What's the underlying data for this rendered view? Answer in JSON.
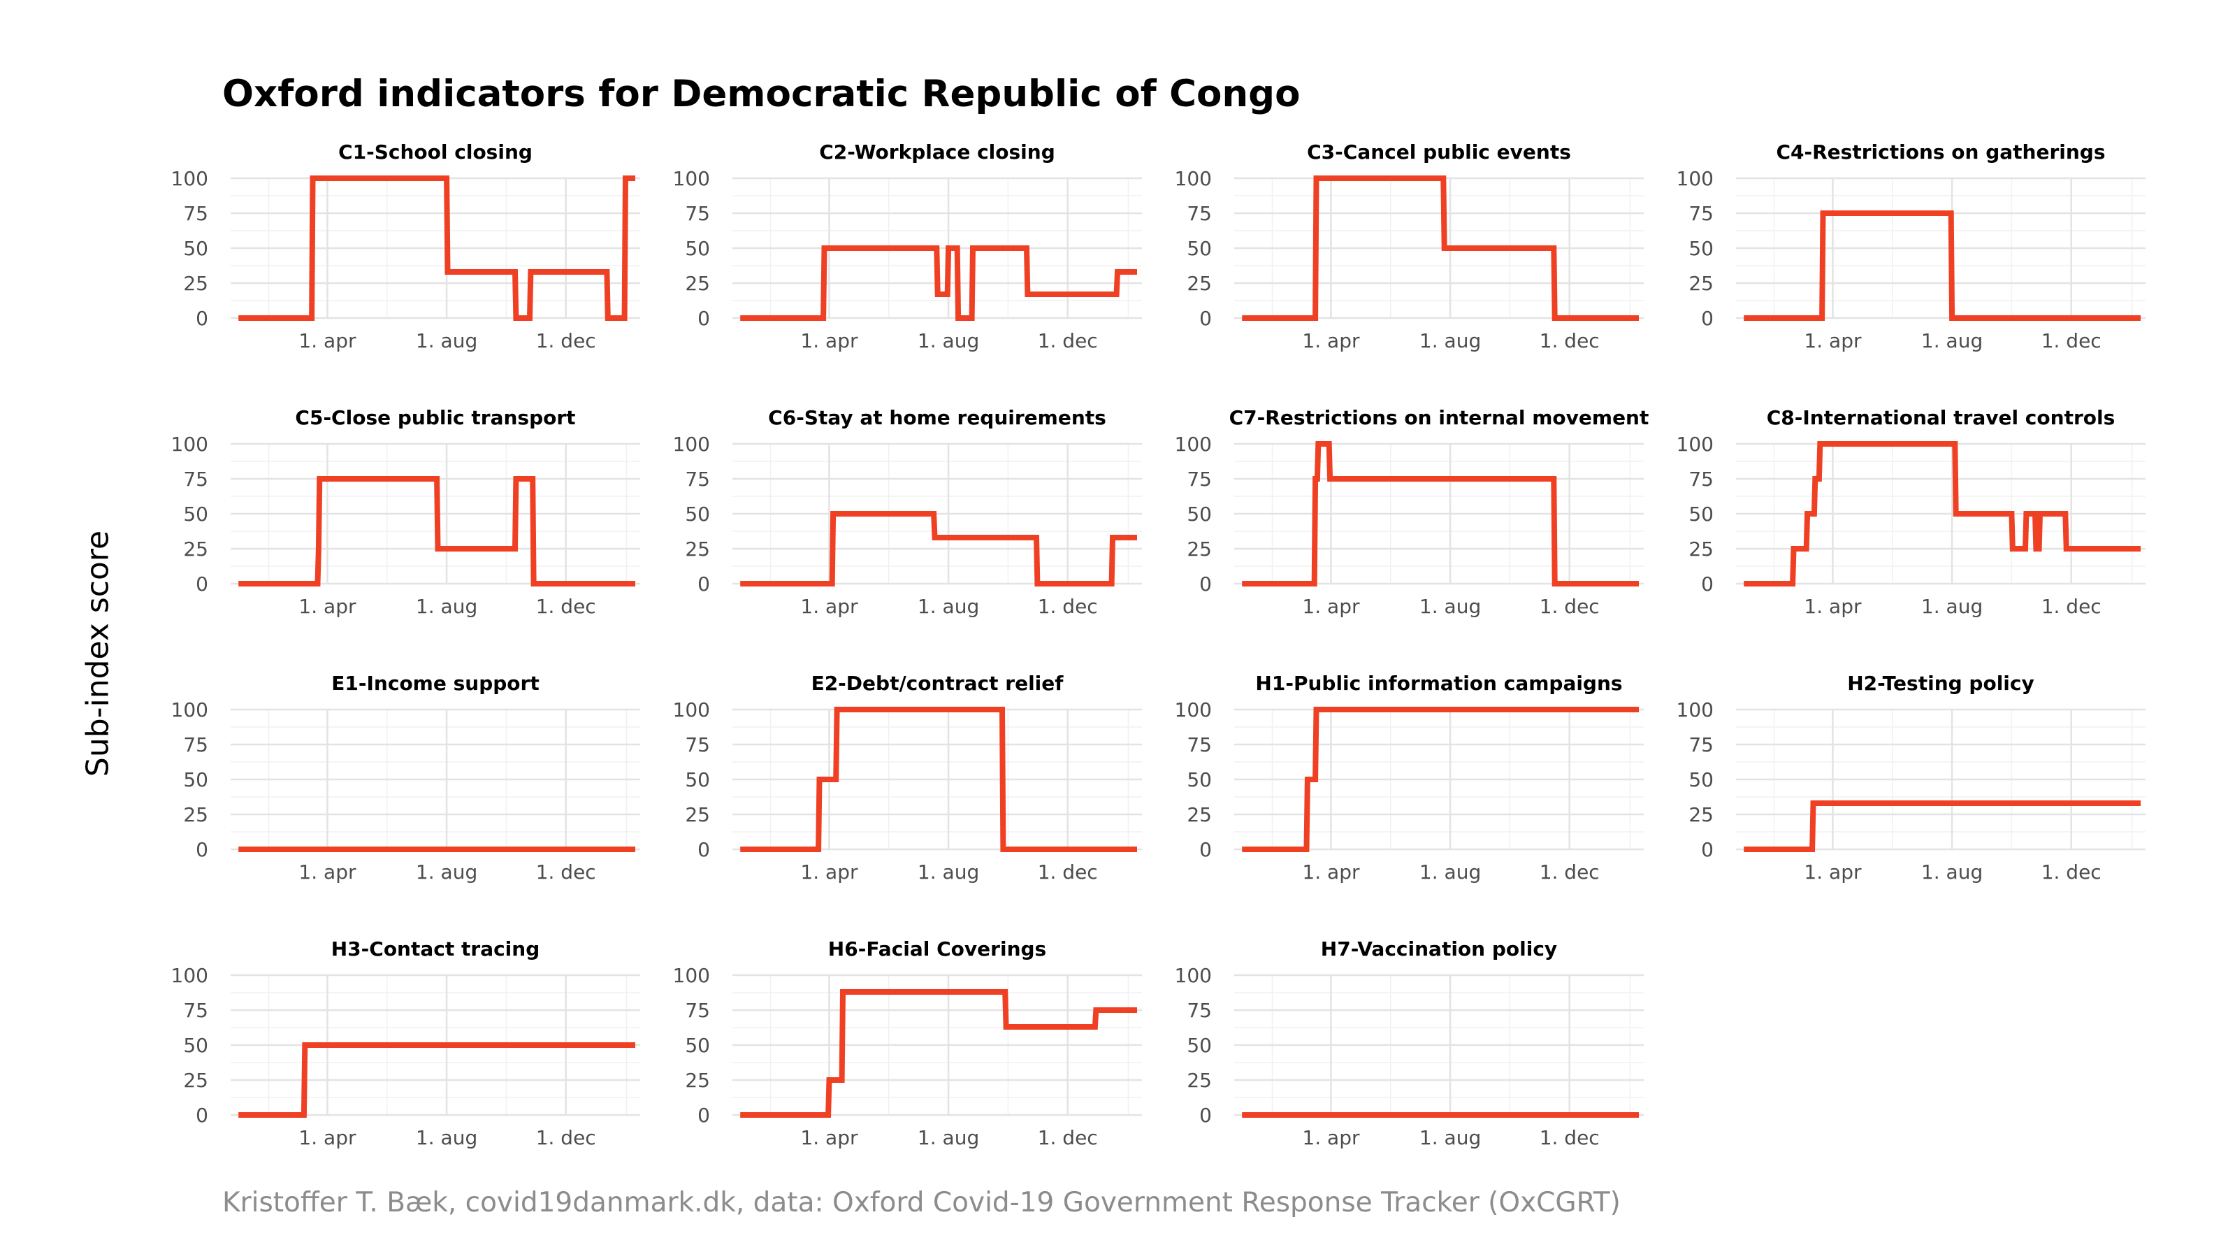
{
  "title": "Oxford indicators for Democratic Republic of Congo",
  "ylabel": "Sub-index score",
  "caption": "Kristoffer T. Bæk, covid19danmark.dk, data: Oxford Covid-19 Government Response Tracker (OxCGRT)",
  "colors": {
    "line": "#f04023",
    "grid": "#e3e3e3",
    "caption": "#8c8c8c"
  },
  "chart_data": [
    {
      "type": "line",
      "title": "C1-School closing",
      "y_ticks": [
        0,
        25,
        50,
        75,
        100
      ],
      "x_ticks": [
        "1. apr",
        "1. aug",
        "1. dec"
      ],
      "ylim": [
        0,
        100
      ],
      "x_range": [
        "2020-01-01",
        "2021-02-10"
      ],
      "grid": true,
      "series": [
        {
          "x": [
            "2020-01-01",
            "2020-03-16",
            "2020-03-17",
            "2020-08-01",
            "2020-08-02",
            "2020-10-10",
            "2020-10-11",
            "2020-10-25",
            "2020-10-26",
            "2021-01-12",
            "2021-01-13",
            "2021-01-30",
            "2021-01-31",
            "2021-02-10"
          ],
          "y": [
            0,
            0,
            100,
            100,
            33,
            33,
            0,
            0,
            33,
            33,
            0,
            0,
            100,
            100
          ]
        }
      ]
    },
    {
      "type": "line",
      "title": "C2-Workplace closing",
      "y_ticks": [
        0,
        25,
        50,
        75,
        100
      ],
      "x_ticks": [
        "1. apr",
        "1. aug",
        "1. dec"
      ],
      "ylim": [
        0,
        100
      ],
      "x_range": [
        "2020-01-01",
        "2021-02-10"
      ],
      "grid": true,
      "series": [
        {
          "x": [
            "2020-01-01",
            "2020-03-26",
            "2020-03-27",
            "2020-07-20",
            "2020-07-21",
            "2020-07-31",
            "2020-08-01",
            "2020-08-10",
            "2020-08-11",
            "2020-08-25",
            "2020-08-26",
            "2020-10-20",
            "2020-10-21",
            "2021-01-20",
            "2021-01-21",
            "2021-02-10"
          ],
          "y": [
            0,
            0,
            50,
            50,
            17,
            17,
            50,
            50,
            0,
            0,
            50,
            50,
            17,
            17,
            33,
            33
          ]
        }
      ]
    },
    {
      "type": "line",
      "title": "C3-Cancel public events",
      "y_ticks": [
        0,
        25,
        50,
        75,
        100
      ],
      "x_ticks": [
        "1. apr",
        "1. aug",
        "1. dec"
      ],
      "ylim": [
        0,
        100
      ],
      "x_range": [
        "2020-01-01",
        "2021-02-10"
      ],
      "grid": true,
      "series": [
        {
          "x": [
            "2020-01-01",
            "2020-03-16",
            "2020-03-17",
            "2020-07-25",
            "2020-07-26",
            "2020-11-15",
            "2020-11-16",
            "2021-02-10"
          ],
          "y": [
            0,
            0,
            100,
            100,
            50,
            50,
            0,
            0
          ]
        }
      ]
    },
    {
      "type": "line",
      "title": "C4-Restrictions on gatherings",
      "y_ticks": [
        0,
        25,
        50,
        75,
        100
      ],
      "x_ticks": [
        "1. apr",
        "1. aug",
        "1. dec"
      ],
      "ylim": [
        0,
        100
      ],
      "x_range": [
        "2020-01-01",
        "2021-02-10"
      ],
      "grid": true,
      "series": [
        {
          "x": [
            "2020-01-01",
            "2020-03-21",
            "2020-03-22",
            "2020-07-31",
            "2020-08-01",
            "2021-02-10"
          ],
          "y": [
            0,
            0,
            75,
            75,
            0,
            0
          ]
        }
      ]
    },
    {
      "type": "line",
      "title": "C5-Close public transport",
      "y_ticks": [
        0,
        25,
        50,
        75,
        100
      ],
      "x_ticks": [
        "1. apr",
        "1. aug",
        "1. dec"
      ],
      "ylim": [
        0,
        100
      ],
      "x_range": [
        "2020-01-01",
        "2021-02-10"
      ],
      "grid": true,
      "series": [
        {
          "x": [
            "2020-01-01",
            "2020-03-22",
            "2020-03-23",
            "2020-03-24",
            "2020-07-22",
            "2020-07-23",
            "2020-10-10",
            "2020-10-11",
            "2020-10-28",
            "2020-10-29",
            "2021-02-10"
          ],
          "y": [
            0,
            0,
            25,
            75,
            75,
            25,
            25,
            75,
            75,
            0,
            0
          ]
        }
      ]
    },
    {
      "type": "line",
      "title": "C6-Stay at home requirements",
      "y_ticks": [
        0,
        25,
        50,
        75,
        100
      ],
      "x_ticks": [
        "1. apr",
        "1. aug",
        "1. dec"
      ],
      "ylim": [
        0,
        100
      ],
      "x_range": [
        "2020-01-01",
        "2021-02-10"
      ],
      "grid": true,
      "series": [
        {
          "x": [
            "2020-01-01",
            "2020-04-04",
            "2020-04-05",
            "2020-07-17",
            "2020-07-18",
            "2020-10-30",
            "2020-10-31",
            "2021-01-15",
            "2021-01-16",
            "2021-02-10"
          ],
          "y": [
            0,
            0,
            50,
            50,
            33,
            33,
            0,
            0,
            33,
            33
          ]
        }
      ]
    },
    {
      "type": "line",
      "title": "C7-Restrictions on internal movement",
      "y_ticks": [
        0,
        25,
        50,
        75,
        100
      ],
      "x_ticks": [
        "1. apr",
        "1. aug",
        "1. dec"
      ],
      "ylim": [
        0,
        100
      ],
      "x_range": [
        "2020-01-01",
        "2021-02-10"
      ],
      "grid": true,
      "series": [
        {
          "x": [
            "2020-01-01",
            "2020-03-15",
            "2020-03-16",
            "2020-03-18",
            "2020-03-19",
            "2020-03-30",
            "2020-03-31",
            "2020-11-15",
            "2020-11-16",
            "2021-02-10"
          ],
          "y": [
            0,
            0,
            75,
            75,
            100,
            100,
            75,
            75,
            0,
            0
          ]
        }
      ]
    },
    {
      "type": "line",
      "title": "C8-International travel controls",
      "y_ticks": [
        0,
        25,
        50,
        75,
        100
      ],
      "x_ticks": [
        "1. apr",
        "1. aug",
        "1. dec"
      ],
      "ylim": [
        0,
        100
      ],
      "x_range": [
        "2020-01-01",
        "2021-02-10"
      ],
      "grid": true,
      "series": [
        {
          "x": [
            "2020-01-01",
            "2020-02-20",
            "2020-02-21",
            "2020-03-05",
            "2020-03-06",
            "2020-03-13",
            "2020-03-14",
            "2020-03-18",
            "2020-03-19",
            "2020-03-22",
            "2020-03-23",
            "2020-08-04",
            "2020-08-05",
            "2020-10-01",
            "2020-10-02",
            "2020-10-15",
            "2020-10-16",
            "2020-10-25",
            "2020-10-26",
            "2020-10-29",
            "2020-10-30",
            "2020-11-25",
            "2020-11-26",
            "2021-02-10"
          ],
          "y": [
            0,
            0,
            25,
            25,
            50,
            50,
            75,
            75,
            100,
            100,
            100,
            100,
            50,
            50,
            25,
            25,
            50,
            50,
            25,
            25,
            50,
            50,
            25,
            25
          ]
        }
      ]
    },
    {
      "type": "line",
      "title": "E1-Income support",
      "y_ticks": [
        0,
        25,
        50,
        75,
        100
      ],
      "x_ticks": [
        "1. apr",
        "1. aug",
        "1. dec"
      ],
      "ylim": [
        0,
        100
      ],
      "x_range": [
        "2020-01-01",
        "2021-02-10"
      ],
      "grid": true,
      "series": [
        {
          "x": [
            "2020-01-01",
            "2021-02-10"
          ],
          "y": [
            0,
            0
          ]
        }
      ]
    },
    {
      "type": "line",
      "title": "E2-Debt/contract relief",
      "y_ticks": [
        0,
        25,
        50,
        75,
        100
      ],
      "x_ticks": [
        "1. apr",
        "1. aug",
        "1. dec"
      ],
      "ylim": [
        0,
        100
      ],
      "x_range": [
        "2020-01-01",
        "2021-02-10"
      ],
      "grid": true,
      "series": [
        {
          "x": [
            "2020-01-01",
            "2020-03-21",
            "2020-03-22",
            "2020-04-08",
            "2020-04-09",
            "2020-09-25",
            "2020-09-26",
            "2021-02-10"
          ],
          "y": [
            0,
            0,
            50,
            50,
            100,
            100,
            0,
            0
          ]
        }
      ]
    },
    {
      "type": "line",
      "title": "H1-Public information campaigns",
      "y_ticks": [
        0,
        25,
        50,
        75,
        100
      ],
      "x_ticks": [
        "1. apr",
        "1. aug",
        "1. dec"
      ],
      "ylim": [
        0,
        100
      ],
      "x_range": [
        "2020-01-01",
        "2021-02-10"
      ],
      "grid": true,
      "series": [
        {
          "x": [
            "2020-01-01",
            "2020-03-07",
            "2020-03-08",
            "2020-03-16",
            "2020-03-17",
            "2021-02-10"
          ],
          "y": [
            0,
            0,
            50,
            50,
            100,
            100
          ]
        }
      ]
    },
    {
      "type": "line",
      "title": "H2-Testing policy",
      "y_ticks": [
        0,
        25,
        50,
        75,
        100
      ],
      "x_ticks": [
        "1. apr",
        "1. aug",
        "1. dec"
      ],
      "ylim": [
        0,
        100
      ],
      "x_range": [
        "2020-01-01",
        "2021-02-10"
      ],
      "grid": true,
      "series": [
        {
          "x": [
            "2020-01-01",
            "2020-03-11",
            "2020-03-12",
            "2021-02-10"
          ],
          "y": [
            0,
            0,
            33,
            33
          ]
        }
      ]
    },
    {
      "type": "line",
      "title": "H3-Contact tracing",
      "y_ticks": [
        0,
        25,
        50,
        75,
        100
      ],
      "x_ticks": [
        "1. apr",
        "1. aug",
        "1. dec"
      ],
      "ylim": [
        0,
        100
      ],
      "x_range": [
        "2020-01-01",
        "2021-02-10"
      ],
      "grid": true,
      "series": [
        {
          "x": [
            "2020-01-01",
            "2020-03-08",
            "2020-03-09",
            "2021-02-10"
          ],
          "y": [
            0,
            0,
            50,
            50
          ]
        }
      ]
    },
    {
      "type": "line",
      "title": "H6-Facial Coverings",
      "y_ticks": [
        0,
        25,
        50,
        75,
        100
      ],
      "x_ticks": [
        "1. apr",
        "1. aug",
        "1. dec"
      ],
      "ylim": [
        0,
        100
      ],
      "x_range": [
        "2020-01-01",
        "2021-02-10"
      ],
      "grid": true,
      "series": [
        {
          "x": [
            "2020-01-01",
            "2020-03-31",
            "2020-04-01",
            "2020-04-14",
            "2020-04-15",
            "2020-09-28",
            "2020-09-29",
            "2020-12-29",
            "2020-12-30",
            "2021-02-10"
          ],
          "y": [
            0,
            0,
            25,
            25,
            88,
            88,
            63,
            63,
            75,
            75
          ]
        }
      ]
    },
    {
      "type": "line",
      "title": "H7-Vaccination policy",
      "y_ticks": [
        0,
        25,
        50,
        75,
        100
      ],
      "x_ticks": [
        "1. apr",
        "1. aug",
        "1. dec"
      ],
      "ylim": [
        0,
        100
      ],
      "x_range": [
        "2020-01-01",
        "2021-02-10"
      ],
      "grid": true,
      "series": [
        {
          "x": [
            "2020-01-01",
            "2021-02-10"
          ],
          "y": [
            0,
            0
          ]
        }
      ]
    }
  ]
}
